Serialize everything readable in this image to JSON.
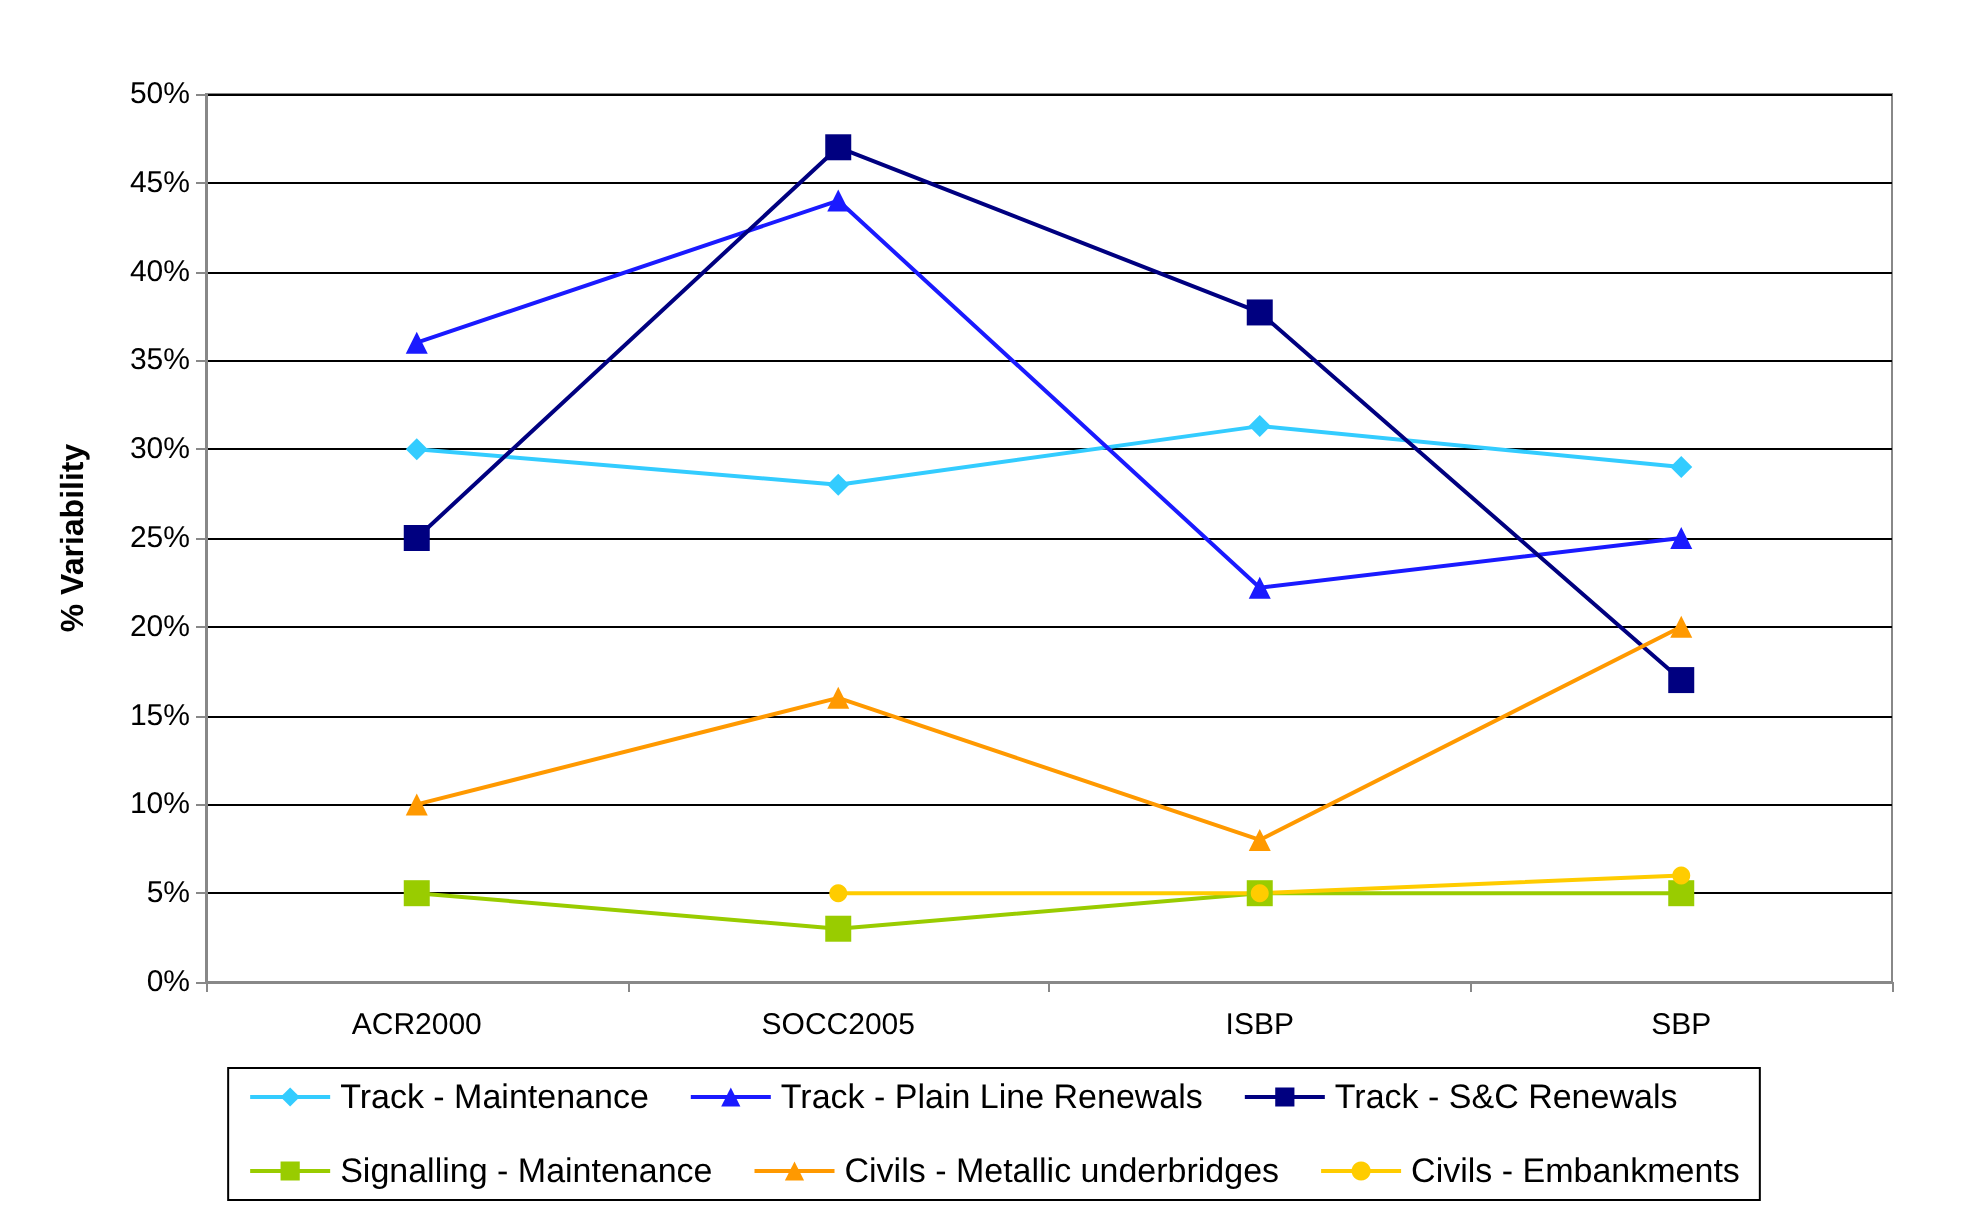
{
  "chart_data": {
    "type": "line",
    "ylabel": "% Variability",
    "categories": [
      "ACR2000",
      "SOCC2005",
      "ISBP",
      "SBP"
    ],
    "ylim": [
      0,
      50
    ],
    "yticks": [
      {
        "value": 0,
        "label": "0%"
      },
      {
        "value": 5,
        "label": "5%"
      },
      {
        "value": 10,
        "label": "10%"
      },
      {
        "value": 15,
        "label": "15%"
      },
      {
        "value": 20,
        "label": "20%"
      },
      {
        "value": 25,
        "label": "25%"
      },
      {
        "value": 30,
        "label": "30%"
      },
      {
        "value": 35,
        "label": "35%"
      },
      {
        "value": 40,
        "label": "40%"
      },
      {
        "value": 45,
        "label": "45%"
      },
      {
        "value": 50,
        "label": "50%"
      }
    ],
    "grid": "y",
    "legend": "bottom",
    "line_style": "solid",
    "series": [
      {
        "name": "Track - Maintenance",
        "color": "#33ccff",
        "marker": "diamond",
        "values": [
          30,
          28,
          31.3,
          29
        ]
      },
      {
        "name": "Track - Plain Line Renewals",
        "color": "#1a1aff",
        "marker": "triangle",
        "values": [
          36,
          44,
          22.2,
          25
        ]
      },
      {
        "name": "Track - S&C Renewals",
        "color": "#000080",
        "marker": "square",
        "values": [
          25,
          47,
          37.7,
          17
        ]
      },
      {
        "name": "Signalling - Maintenance",
        "color": "#99cc00",
        "marker": "square",
        "values": [
          5,
          3,
          5,
          5
        ]
      },
      {
        "name": "Civils - Metallic underbridges",
        "color": "#ff9900",
        "marker": "triangle",
        "values": [
          10,
          16,
          8,
          20
        ]
      },
      {
        "name": "Civils - Embankments",
        "color": "#ffcc00",
        "marker": "circle",
        "values": [
          null,
          5,
          5,
          6
        ]
      }
    ]
  }
}
